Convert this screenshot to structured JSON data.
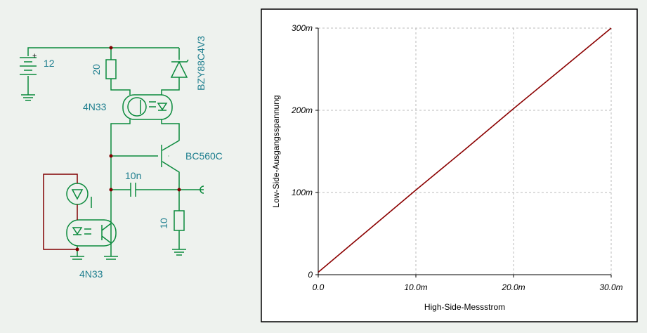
{
  "schematic": {
    "labels": [
      "12",
      "20",
      "BZY88C4V3",
      "4N33",
      "BC560C",
      "10n",
      "10",
      "4N33"
    ]
  },
  "chart_data": {
    "type": "line",
    "x_label": "High-Side-Messstrom",
    "y_label": "Low-Side-Ausgangsspannung",
    "x": [
      0,
      0.005,
      0.01,
      0.015,
      0.02,
      0.025,
      0.03
    ],
    "series": [
      {
        "color": "#8b0000",
        "values": [
          0.003,
          0.053,
          0.103,
          0.152,
          0.202,
          0.251,
          0.3
        ]
      }
    ],
    "xlim": [
      0,
      0.03
    ],
    "ylim": [
      0,
      0.3
    ],
    "xticks": [
      {
        "value": 0,
        "label": "0.0"
      },
      {
        "value": 0.01,
        "label": "10.0m"
      },
      {
        "value": 0.02,
        "label": "20.0m"
      },
      {
        "value": 0.03,
        "label": "30.0m"
      }
    ],
    "yticks": [
      0,
      {
        "value": 0.1,
        "label": "100m"
      },
      {
        "value": 0.2,
        "label": "200m"
      },
      {
        "value": 0.3,
        "label": "300m"
      }
    ],
    "grid": true
  }
}
